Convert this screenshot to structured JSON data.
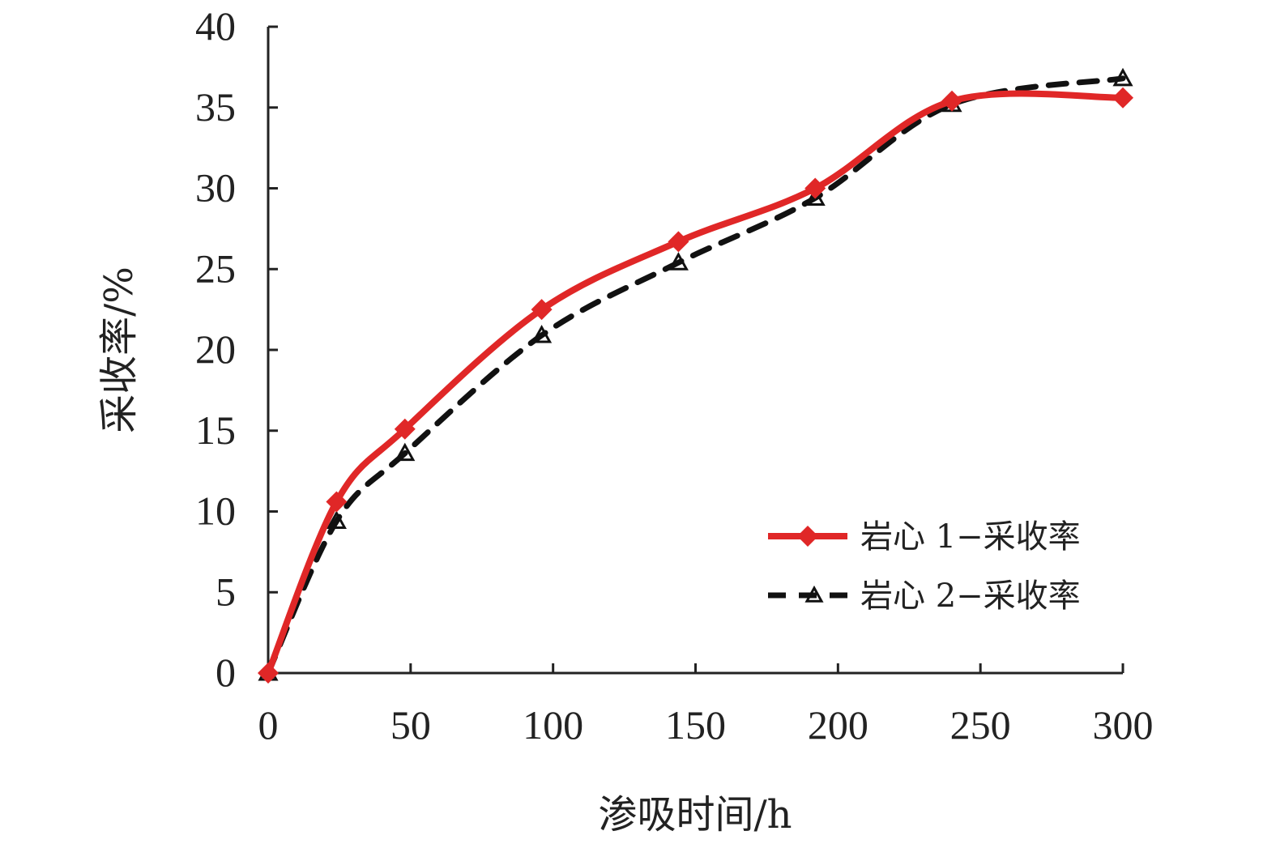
{
  "chart_data": {
    "type": "line",
    "title": "",
    "xlabel": "渗吸时间/h",
    "ylabel": "采收率/%",
    "xlim": [
      0,
      300
    ],
    "ylim": [
      0,
      40
    ],
    "x_ticks": [
      0,
      50,
      100,
      150,
      200,
      250,
      300
    ],
    "y_ticks": [
      0,
      5,
      10,
      15,
      20,
      25,
      30,
      35,
      40
    ],
    "grid": false,
    "legend_position": "bottom-right",
    "series": [
      {
        "name": "岩心 1−采收率",
        "color": "#e02727",
        "style": "solid",
        "marker": "diamond",
        "x": [
          0,
          24,
          48,
          96,
          144,
          192,
          240,
          300
        ],
        "values": [
          0,
          10.6,
          15.1,
          22.5,
          26.7,
          30.0,
          35.4,
          35.6
        ]
      },
      {
        "name": "岩心 2−采收率",
        "color": "#111111",
        "style": "dashed",
        "marker": "triangle",
        "x": [
          0,
          24,
          48,
          96,
          144,
          192,
          240,
          300
        ],
        "values": [
          0,
          9.4,
          13.6,
          20.9,
          25.4,
          29.4,
          35.2,
          36.8
        ]
      }
    ]
  }
}
